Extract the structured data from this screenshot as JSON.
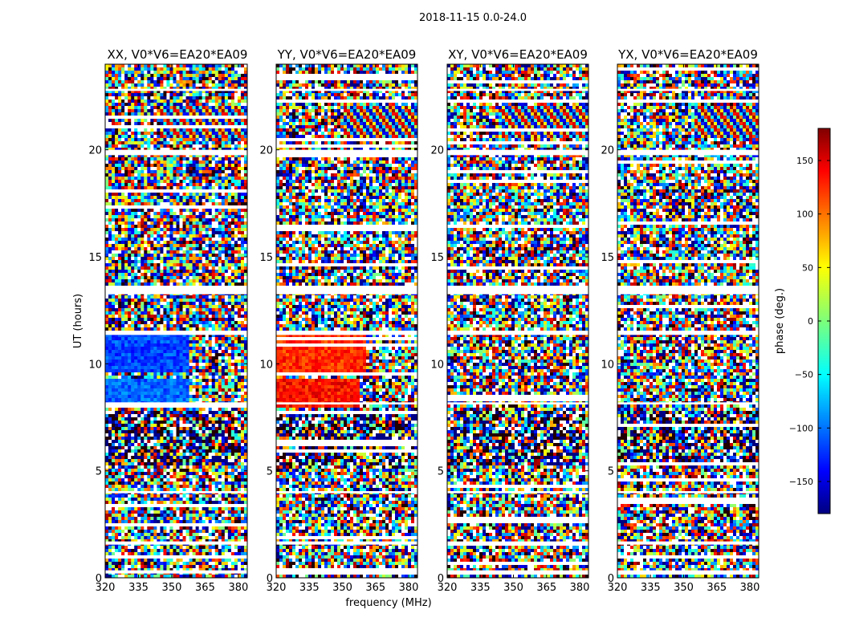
{
  "figure": {
    "suptitle": "2018-11-15 0.0-24.0",
    "xlabel": "frequency (MHz)",
    "ylabel": "UT (hours)",
    "colorbar_label": "phase (deg.)",
    "colorbar_ticks": [
      "150",
      "100",
      "50",
      "0",
      "−50",
      "−100",
      "−150"
    ],
    "x_tick_labels": [
      "320",
      "335",
      "350",
      "365",
      "380"
    ],
    "y_tick_labels": [
      "0",
      "5",
      "10",
      "15",
      "20"
    ]
  },
  "chart_data": [
    {
      "type": "heatmap",
      "title": "XX, V0*V6=EA20*EA09",
      "xlabel": "",
      "ylabel": "UT (hours)",
      "x": [
        320,
        335,
        350,
        365,
        380
      ],
      "xlim": [
        320,
        384
      ],
      "y": [
        0,
        5,
        10,
        15,
        20
      ],
      "ylim": [
        0,
        24
      ],
      "zlim": [
        -180,
        180
      ],
      "features": [
        {
          "kind": "block",
          "t": [
            9.6,
            11.4
          ],
          "f": [
            320,
            358
          ],
          "phase": -110
        },
        {
          "kind": "stripe",
          "t": [
            8.0,
            9.3
          ],
          "f": [
            320,
            358
          ],
          "phase": -100
        },
        {
          "kind": "fringe",
          "t": [
            20.5,
            22.0
          ],
          "f": [
            345,
            384
          ],
          "phase": 0
        }
      ],
      "gaps_hours": [
        [
          0.2,
          0.35
        ],
        [
          1.55,
          1.7
        ],
        [
          3.95,
          4.05
        ],
        [
          8.1,
          8.2
        ],
        [
          11.35,
          11.55
        ],
        [
          13.25,
          13.65
        ],
        [
          19.75,
          20.0
        ],
        [
          22.75,
          22.85
        ]
      ]
    },
    {
      "type": "heatmap",
      "title": "YY, V0*V6=EA20*EA09",
      "xlabel": "frequency (MHz)",
      "ylabel": "",
      "x": [
        320,
        335,
        350,
        365,
        380
      ],
      "xlim": [
        320,
        384
      ],
      "y": [
        0,
        5,
        10,
        15,
        20
      ],
      "ylim": [
        0,
        24
      ],
      "zlim": [
        -180,
        180
      ],
      "features": [
        {
          "kind": "block",
          "t": [
            9.6,
            11.4
          ],
          "f": [
            320,
            360
          ],
          "phase": 120
        },
        {
          "kind": "stripe",
          "t": [
            8.0,
            9.3
          ],
          "f": [
            320,
            358
          ],
          "phase": 130
        },
        {
          "kind": "fringe",
          "t": [
            20.5,
            22.0
          ],
          "f": [
            350,
            384
          ],
          "phase": 0
        }
      ],
      "gaps_hours": [
        [
          0.2,
          0.35
        ],
        [
          1.55,
          1.7
        ],
        [
          3.95,
          4.05
        ],
        [
          8.1,
          8.2
        ],
        [
          11.35,
          11.55
        ],
        [
          13.25,
          13.65
        ],
        [
          19.75,
          20.0
        ],
        [
          22.75,
          22.85
        ]
      ]
    },
    {
      "type": "heatmap",
      "title": "XY, V0*V6=EA20*EA09",
      "xlabel": "",
      "ylabel": "",
      "x": [
        320,
        335,
        350,
        365,
        380
      ],
      "xlim": [
        320,
        384
      ],
      "y": [
        0,
        5,
        10,
        15,
        20
      ],
      "ylim": [
        0,
        24
      ],
      "zlim": [
        -180,
        180
      ],
      "features": [
        {
          "kind": "fringe",
          "t": [
            20.5,
            22.0
          ],
          "f": [
            345,
            384
          ],
          "phase": 0
        }
      ],
      "gaps_hours": [
        [
          0.2,
          0.35
        ],
        [
          1.55,
          1.7
        ],
        [
          3.95,
          4.05
        ],
        [
          8.1,
          8.2
        ],
        [
          11.35,
          11.55
        ],
        [
          13.25,
          13.65
        ],
        [
          19.75,
          20.0
        ],
        [
          22.75,
          22.85
        ]
      ]
    },
    {
      "type": "heatmap",
      "title": "YX, V0*V6=EA20*EA09",
      "xlabel": "",
      "ylabel": "",
      "x": [
        320,
        335,
        350,
        365,
        380
      ],
      "xlim": [
        320,
        384
      ],
      "y": [
        0,
        5,
        10,
        15,
        20
      ],
      "ylim": [
        0,
        24
      ],
      "zlim": [
        -180,
        180
      ],
      "features": [
        {
          "kind": "fringe",
          "t": [
            20.5,
            22.0
          ],
          "f": [
            355,
            384
          ],
          "phase": 0
        }
      ],
      "gaps_hours": [
        [
          0.2,
          0.35
        ],
        [
          1.55,
          1.7
        ],
        [
          3.95,
          4.05
        ],
        [
          8.1,
          8.2
        ],
        [
          11.35,
          11.55
        ],
        [
          13.25,
          13.65
        ],
        [
          19.75,
          20.0
        ],
        [
          22.75,
          22.85
        ]
      ]
    }
  ],
  "colorbar": {
    "zlim": [
      -180,
      180
    ],
    "ticks": [
      150,
      100,
      50,
      0,
      -50,
      -100,
      -150
    ]
  }
}
